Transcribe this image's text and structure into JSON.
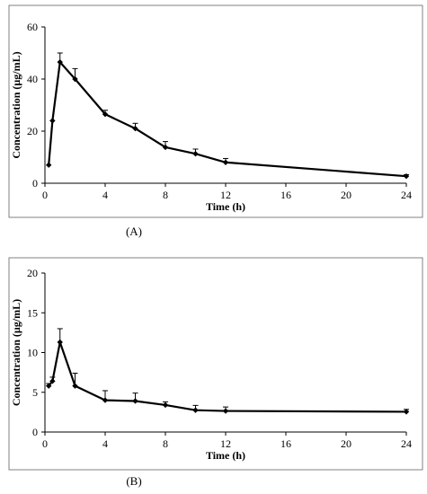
{
  "chart_data": [
    {
      "type": "line",
      "panel_label": "(A)",
      "xlabel": "Time (h)",
      "ylabel": "Concentration (µg/mL)",
      "xlim": [
        0,
        24
      ],
      "ylim": [
        0,
        60
      ],
      "xticks": [
        0,
        4,
        8,
        12,
        16,
        20,
        24
      ],
      "yticks": [
        0,
        20,
        40,
        60
      ],
      "x": [
        0.25,
        0.5,
        1,
        2,
        4,
        6,
        8,
        10,
        12,
        24
      ],
      "series": [
        {
          "values": [
            7,
            24,
            46.5,
            40,
            26.5,
            21,
            13.8,
            11.3,
            8,
            2.7
          ],
          "errors": [
            0,
            0,
            3.5,
            4,
            1.5,
            2,
            2.2,
            1.8,
            1.5,
            0.6
          ]
        }
      ],
      "grid": false
    },
    {
      "type": "line",
      "panel_label": "(B)",
      "xlabel": "Time (h)",
      "ylabel": "Concentration (µg/mL)",
      "xlim": [
        0,
        24
      ],
      "ylim": [
        0,
        20
      ],
      "xticks": [
        0,
        4,
        8,
        12,
        16,
        20,
        24
      ],
      "yticks": [
        0,
        5,
        10,
        15,
        20
      ],
      "x": [
        0.25,
        0.5,
        1,
        2,
        4,
        6,
        8,
        10,
        12,
        24
      ],
      "series": [
        {
          "values": [
            5.8,
            6.4,
            11.3,
            5.8,
            4.0,
            3.9,
            3.4,
            2.75,
            2.65,
            2.55
          ],
          "errors": [
            0.3,
            0.5,
            1.7,
            1.6,
            1.2,
            1.0,
            0.4,
            0.6,
            0.5,
            0.3
          ]
        }
      ],
      "grid": false
    }
  ]
}
